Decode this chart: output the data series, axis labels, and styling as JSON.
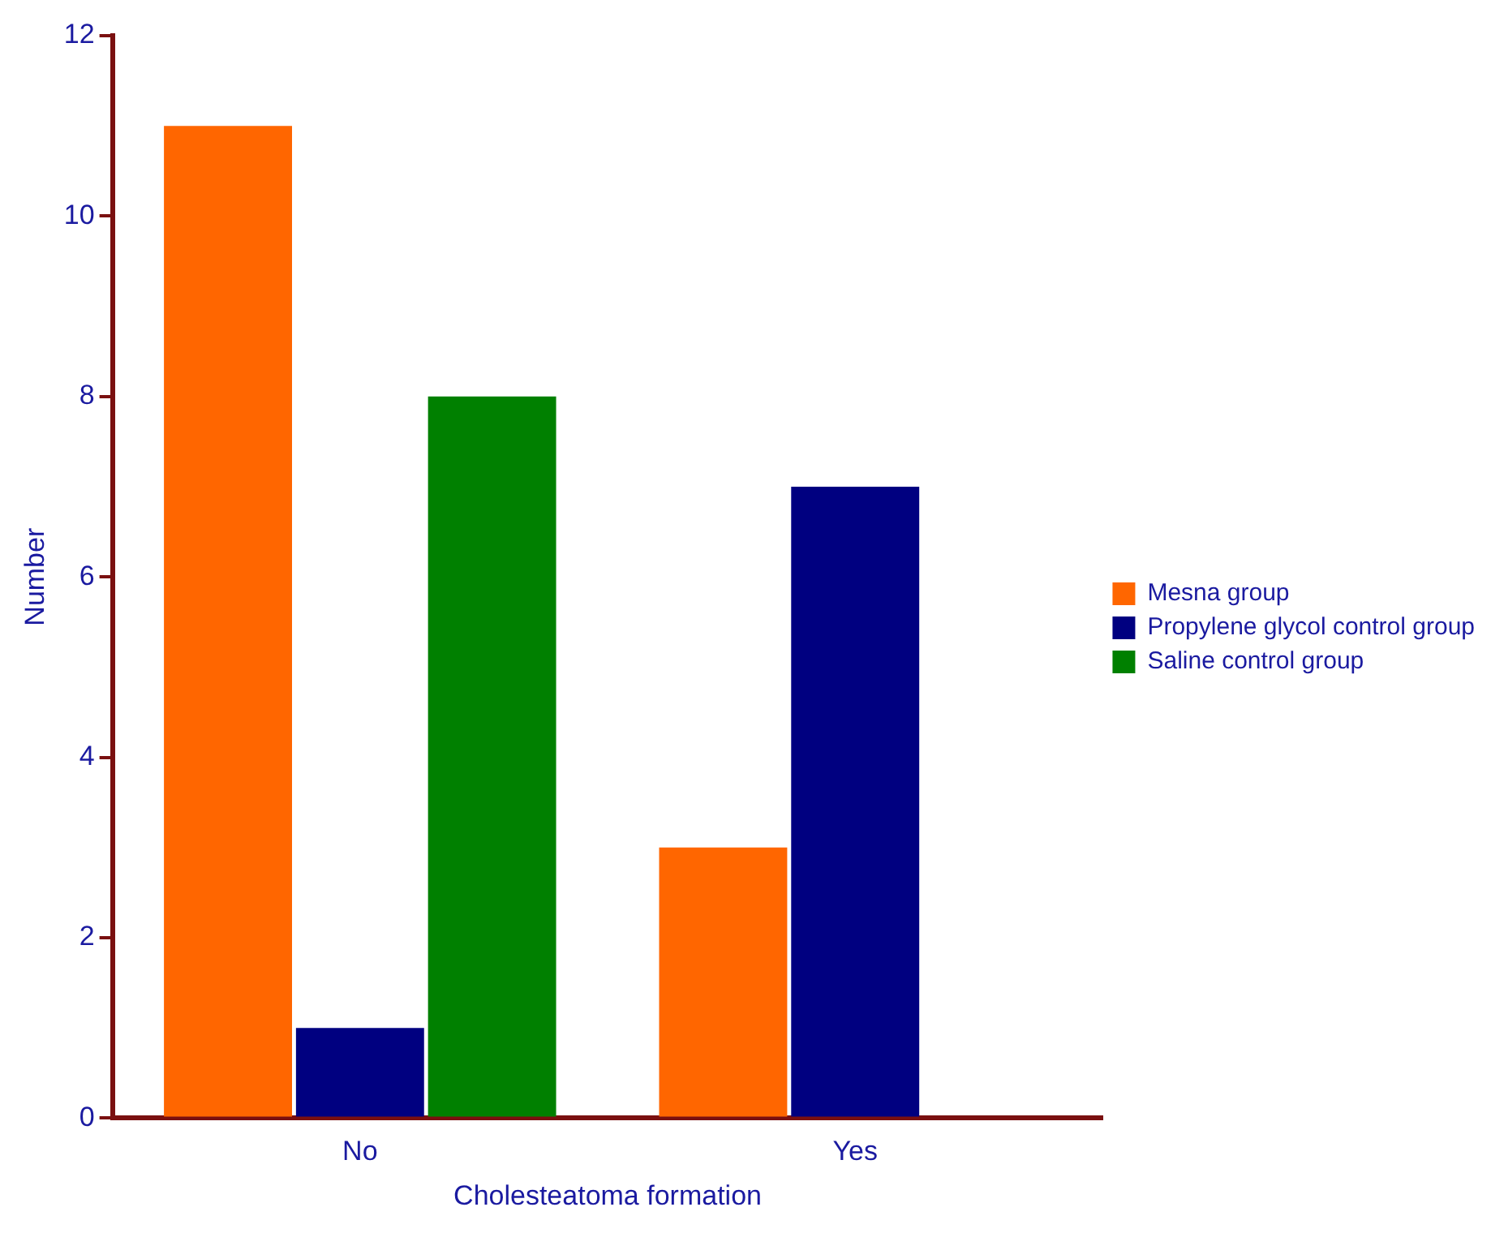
{
  "chart_data": {
    "type": "bar",
    "xlabel": "Cholesteatoma formation",
    "ylabel": "Number",
    "categories": [
      "No",
      "Yes"
    ],
    "series": [
      {
        "name": "Mesna group",
        "color": "#ff6600",
        "values": [
          11,
          3
        ]
      },
      {
        "name": "Propylene glycol control group",
        "color": "#000080",
        "values": [
          1,
          7
        ]
      },
      {
        "name": "Saline control group",
        "color": "#008000",
        "values": [
          8,
          0
        ]
      }
    ],
    "ylim": [
      0,
      12
    ],
    "yticks": [
      0,
      2,
      4,
      6,
      8,
      10,
      12
    ],
    "grid": false,
    "legend": "right"
  }
}
